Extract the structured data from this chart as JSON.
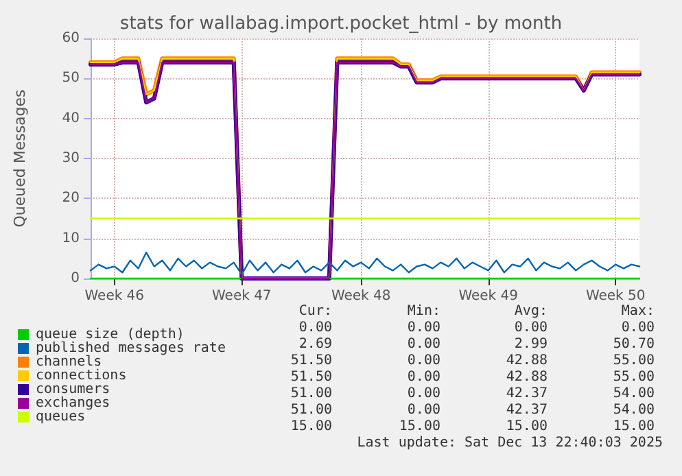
{
  "chart_data": {
    "type": "line",
    "title": "stats for wallabag.import.pocket_html - by month",
    "ylabel": "Queued Messages",
    "categories": [
      null,
      null,
      null,
      "Week 46",
      null,
      null,
      null,
      null,
      null,
      null,
      null,
      null,
      null,
      null,
      null,
      null,
      null,
      null,
      null,
      "Week 47",
      null,
      null,
      null,
      null,
      null,
      null,
      null,
      null,
      null,
      null,
      null,
      null,
      null,
      null,
      "Week 48",
      null,
      null,
      null,
      null,
      null,
      null,
      null,
      null,
      null,
      null,
      null,
      null,
      null,
      null,
      null,
      "Week 49",
      null,
      null,
      null,
      null,
      null,
      null,
      null,
      null,
      null,
      null,
      null,
      null,
      null,
      null,
      null,
      "Week 50",
      null,
      null,
      null
    ],
    "ylim": [
      0,
      60
    ],
    "yticks": [
      0,
      10,
      20,
      30,
      40,
      50,
      60
    ],
    "grid": true,
    "legend": "bottom left",
    "marker": "none",
    "line_style": "solid",
    "series": [
      {
        "name": "queue size (depth)",
        "color": "#00cc00",
        "values": [
          0,
          0,
          0,
          0,
          0,
          0,
          0,
          0,
          0,
          0,
          0,
          0,
          0,
          0,
          0,
          0,
          0,
          0,
          0,
          0,
          0,
          0,
          0,
          0,
          0,
          0,
          0,
          0,
          0,
          0,
          0,
          0,
          0,
          0,
          0,
          0,
          0,
          0,
          0,
          0,
          0,
          0,
          0,
          0,
          0,
          0,
          0,
          0,
          0,
          0,
          0,
          0,
          0,
          0,
          0,
          0,
          0,
          0,
          0,
          0,
          0,
          0,
          0,
          0,
          0,
          0,
          0,
          0,
          0,
          0
        ]
      },
      {
        "name": "published messages rate",
        "color": "#0066b3",
        "values": [
          2,
          3.5,
          2.5,
          3,
          1.5,
          4.5,
          2.5,
          6.5,
          3,
          4.5,
          2,
          5,
          3,
          4.5,
          2.5,
          4,
          3,
          2.5,
          4,
          1,
          4.5,
          2,
          4,
          1.5,
          3.5,
          2.5,
          4.5,
          1.5,
          3,
          2,
          4,
          2,
          4.5,
          3,
          4,
          2.5,
          5,
          3,
          2,
          3.5,
          1.5,
          3,
          3.5,
          2.5,
          4,
          3,
          5,
          2.5,
          4,
          3,
          2,
          4.5,
          1.5,
          3.5,
          3,
          5,
          2,
          4,
          3,
          2.5,
          4,
          2,
          3.5,
          4.5,
          3,
          2,
          3.5,
          2.5,
          3.5,
          3
        ]
      },
      {
        "name": "channels",
        "color": "#ff8000",
        "values": [
          54,
          54,
          54,
          54,
          55,
          55,
          55,
          46,
          47,
          55,
          55,
          55,
          55,
          55,
          55,
          55,
          55,
          55,
          55,
          0,
          0,
          0,
          0,
          0,
          0,
          0,
          0,
          0,
          0,
          0,
          0,
          55,
          55,
          55,
          55,
          55,
          55,
          55,
          55,
          53.5,
          53.5,
          49.5,
          49.5,
          49.5,
          50.5,
          50.5,
          50.5,
          50.5,
          50.5,
          50.5,
          50.5,
          50.5,
          50.5,
          50.5,
          50.5,
          50.5,
          50.5,
          50.5,
          50.5,
          50.5,
          50.5,
          50.5,
          47,
          51.5,
          51.5,
          51.5,
          51.5,
          51.5,
          51.5,
          51.5
        ]
      },
      {
        "name": "connections",
        "color": "#ffcc00",
        "values": [
          54,
          54,
          54,
          54,
          55,
          55,
          55,
          46,
          47,
          55,
          55,
          55,
          55,
          55,
          55,
          55,
          55,
          55,
          55,
          0,
          0,
          0,
          0,
          0,
          0,
          0,
          0,
          0,
          0,
          0,
          0,
          55,
          55,
          55,
          55,
          55,
          55,
          55,
          55,
          53.5,
          53.5,
          49.5,
          49.5,
          49.5,
          50.5,
          50.5,
          50.5,
          50.5,
          50.5,
          50.5,
          50.5,
          50.5,
          50.5,
          50.5,
          50.5,
          50.5,
          50.5,
          50.5,
          50.5,
          50.5,
          50.5,
          50.5,
          47,
          51.5,
          51.5,
          51.5,
          51.5,
          51.5,
          51.5,
          51.5
        ]
      },
      {
        "name": "consumers",
        "color": "#330099",
        "values": [
          53.5,
          53.5,
          53.5,
          53.5,
          54,
          54,
          54,
          44,
          45,
          54,
          54,
          54,
          54,
          54,
          54,
          54,
          54,
          54,
          54,
          0,
          0,
          0,
          0,
          0,
          0,
          0,
          0,
          0,
          0,
          0,
          0,
          54,
          54,
          54,
          54,
          54,
          54,
          54,
          54,
          53,
          53,
          49,
          49,
          49,
          50,
          50,
          50,
          50,
          50,
          50,
          50,
          50,
          50,
          50,
          50,
          50,
          50,
          50,
          50,
          50,
          50,
          50,
          47,
          51,
          51,
          51,
          51,
          51,
          51,
          51
        ]
      },
      {
        "name": "exchanges",
        "color": "#990099",
        "values": [
          53.5,
          53.5,
          53.5,
          53.5,
          54,
          54,
          54,
          44,
          45,
          54,
          54,
          54,
          54,
          54,
          54,
          54,
          54,
          54,
          54,
          0,
          0,
          0,
          0,
          0,
          0,
          0,
          0,
          0,
          0,
          0,
          0,
          54,
          54,
          54,
          54,
          54,
          54,
          54,
          54,
          53,
          53,
          49,
          49,
          49,
          50,
          50,
          50,
          50,
          50,
          50,
          50,
          50,
          50,
          50,
          50,
          50,
          50,
          50,
          50,
          50,
          50,
          50,
          47,
          51,
          51,
          51,
          51,
          51,
          51,
          51
        ]
      },
      {
        "name": "queues",
        "color": "#ccff00",
        "values": [
          15,
          15,
          15,
          15,
          15,
          15,
          15,
          15,
          15,
          15,
          15,
          15,
          15,
          15,
          15,
          15,
          15,
          15,
          15,
          15,
          15,
          15,
          15,
          15,
          15,
          15,
          15,
          15,
          15,
          15,
          15,
          15,
          15,
          15,
          15,
          15,
          15,
          15,
          15,
          15,
          15,
          15,
          15,
          15,
          15,
          15,
          15,
          15,
          15,
          15,
          15,
          15,
          15,
          15,
          15,
          15,
          15,
          15,
          15,
          15,
          15,
          15,
          15,
          15,
          15,
          15,
          15,
          15,
          15,
          15
        ]
      }
    ],
    "annotations": [
      "Cur:",
      "Min:",
      "Avg:",
      "Max:",
      "0.00",
      "0.00",
      "0.00",
      "0.00",
      "2.69",
      "0.00",
      "2.99",
      "50.70",
      "51.50",
      "0.00",
      "42.88",
      "55.00",
      "51.50",
      "0.00",
      "42.88",
      "55.00",
      "51.00",
      "0.00",
      "42.37",
      "54.00",
      "51.00",
      "0.00",
      "42.37",
      "54.00",
      "15.00",
      "15.00",
      "15.00",
      "15.00",
      "Last update: Sat Dec 13 22:40:03 2025"
    ]
  }
}
